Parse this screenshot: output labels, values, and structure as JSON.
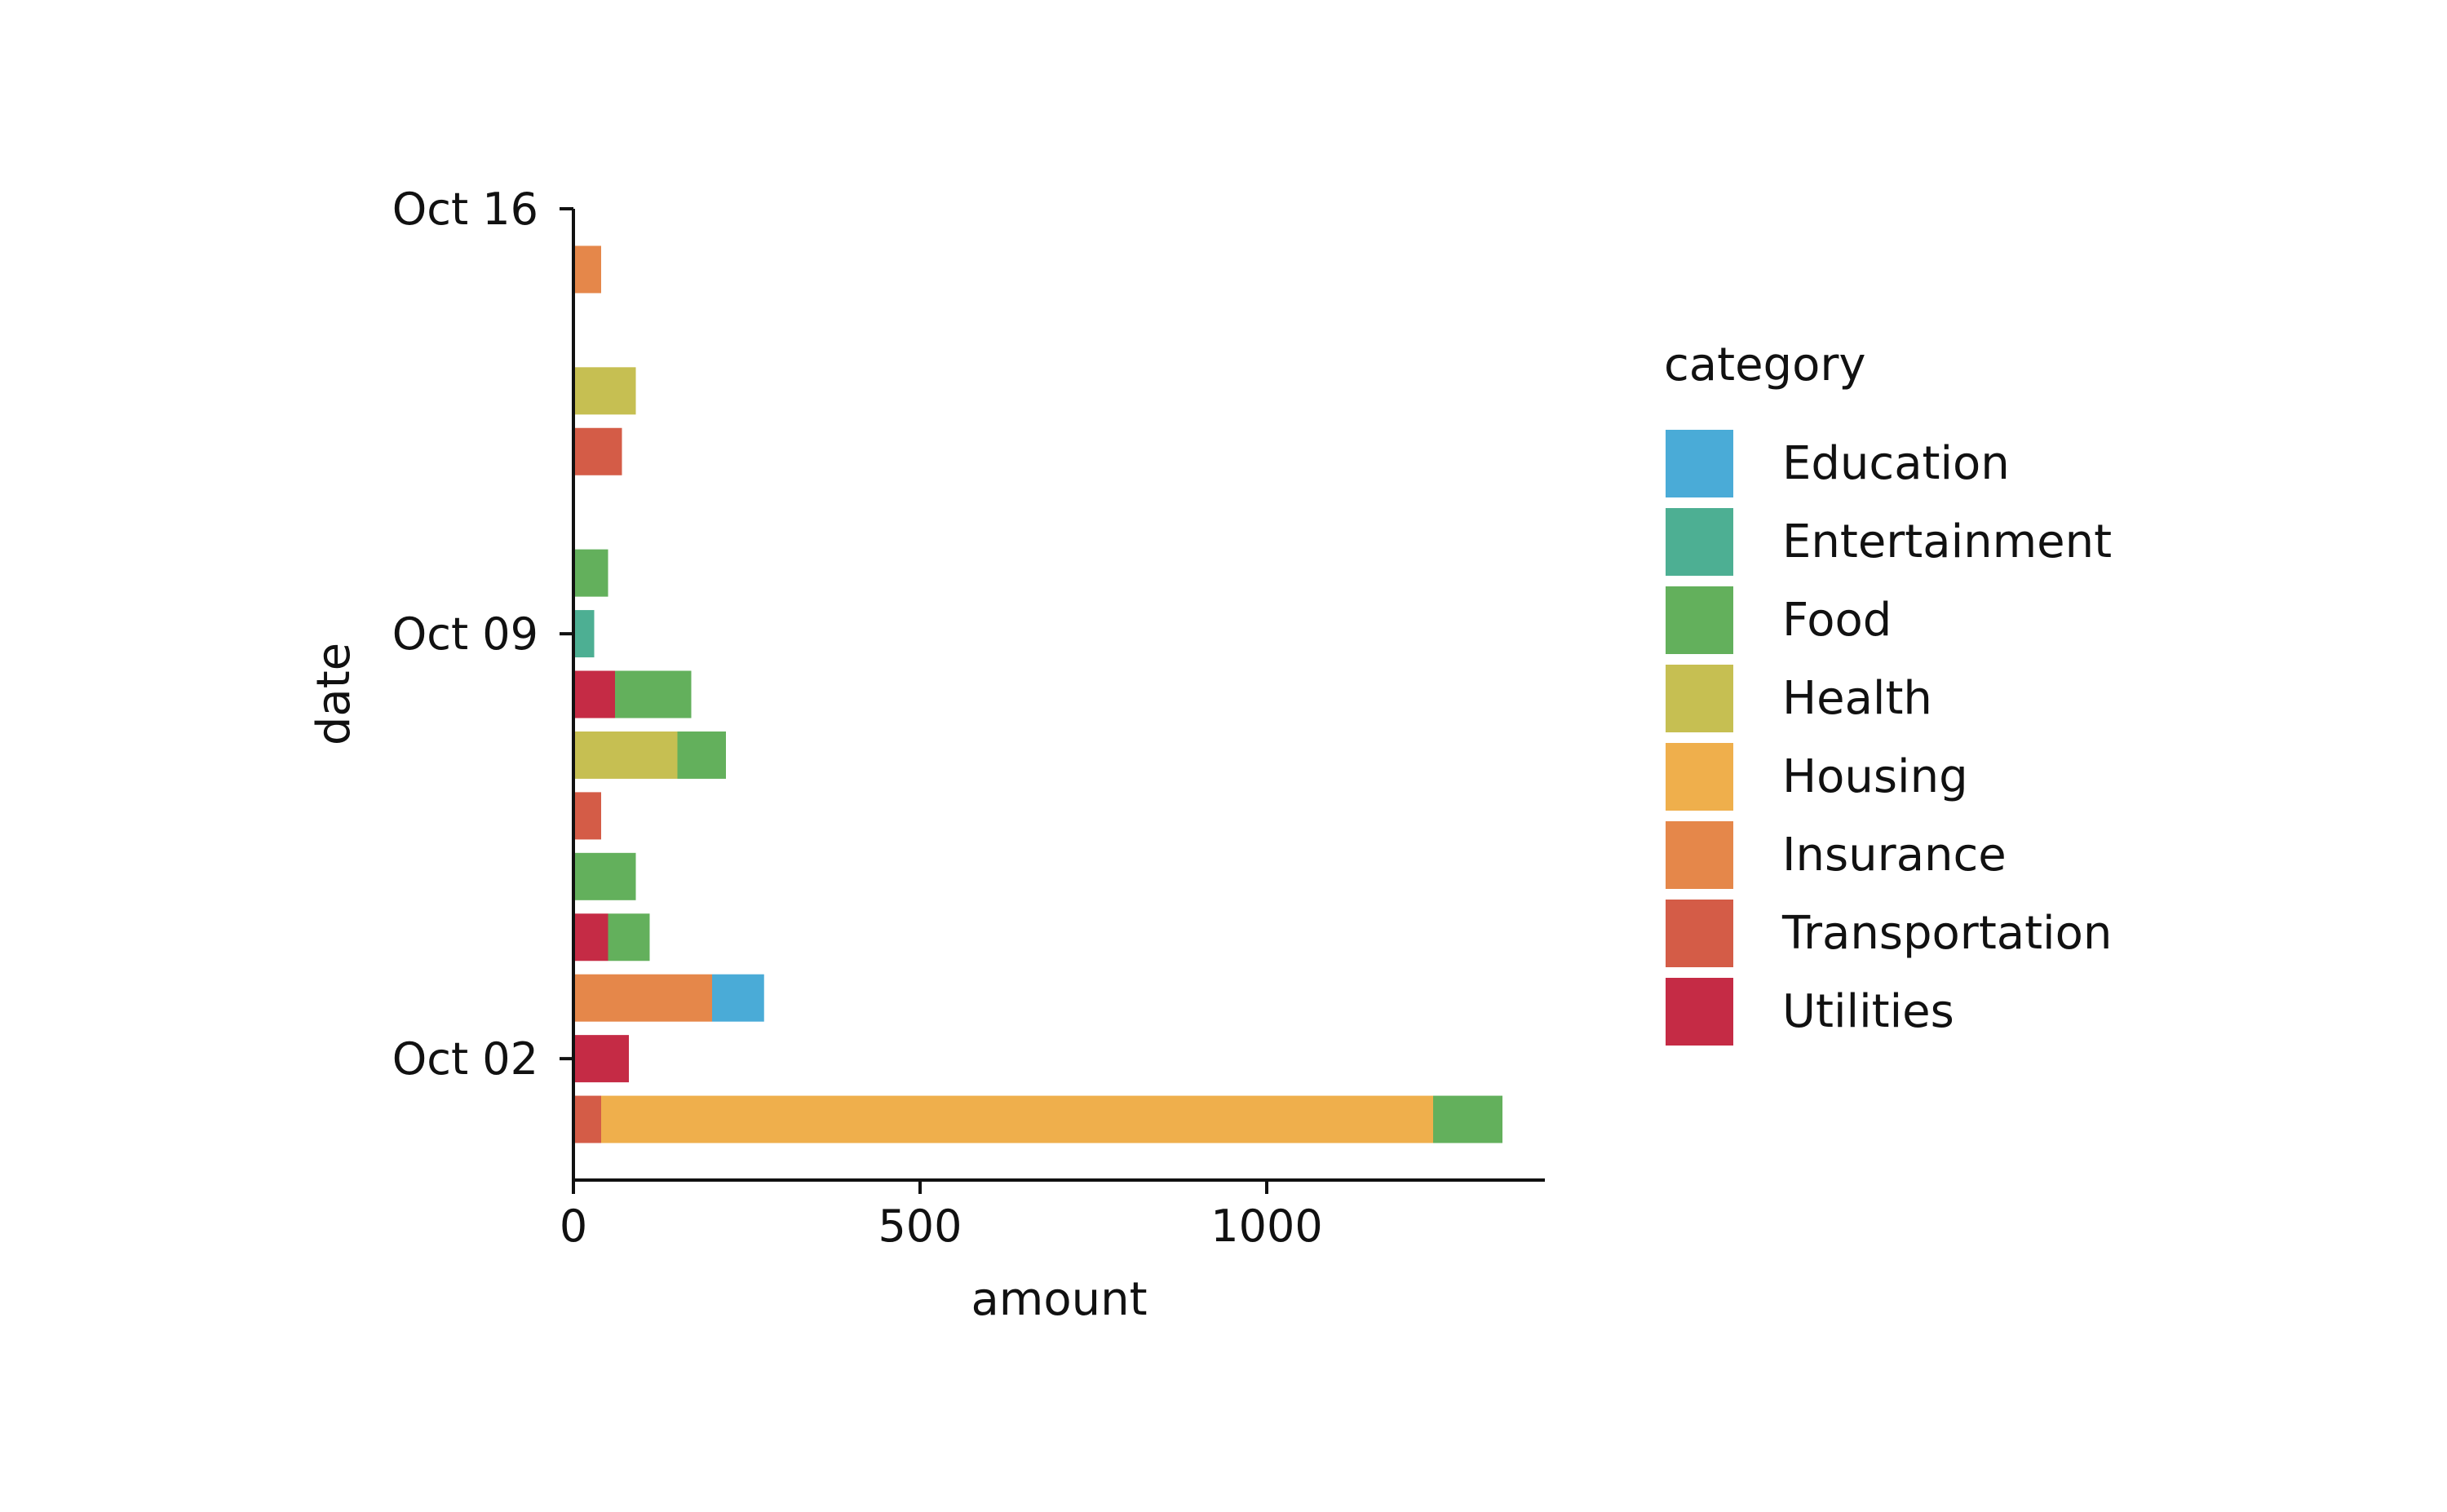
{
  "chart_data": {
    "type": "bar",
    "orientation": "horizontal",
    "stacked": true,
    "xlabel": "amount",
    "ylabel": "date",
    "xlim": [
      0,
      1400
    ],
    "x_ticks": [
      {
        "value": 0,
        "label": "0"
      },
      {
        "value": 500,
        "label": "500"
      },
      {
        "value": 1000,
        "label": "1000"
      }
    ],
    "ylim": [
      "2023-09-30",
      "2023-10-16"
    ],
    "y_ticks": [
      {
        "date": "2023-10-02",
        "label": "Oct 02"
      },
      {
        "date": "2023-10-09",
        "label": "Oct 09"
      },
      {
        "date": "2023-10-16",
        "label": "Oct 16"
      }
    ],
    "legend": {
      "title": "category",
      "position": "right"
    },
    "grid": false,
    "categories": [
      {
        "name": "Education",
        "color": "#4aabd7"
      },
      {
        "name": "Entertainment",
        "color": "#4daf93"
      },
      {
        "name": "Food",
        "color": "#63b05c"
      },
      {
        "name": "Health",
        "color": "#c6bf52"
      },
      {
        "name": "Housing",
        "color": "#efaf4c"
      },
      {
        "name": "Insurance",
        "color": "#e5874a"
      },
      {
        "name": "Transportation",
        "color": "#d45c47"
      },
      {
        "name": "Utilities",
        "color": "#c52b45"
      }
    ],
    "bars": [
      {
        "date": "2023-10-01",
        "segments": [
          {
            "category": "Transportation",
            "value": 40
          },
          {
            "category": "Housing",
            "value": 1200
          },
          {
            "category": "Food",
            "value": 100
          }
        ]
      },
      {
        "date": "2023-10-02",
        "segments": [
          {
            "category": "Utilities",
            "value": 80
          }
        ]
      },
      {
        "date": "2023-10-03",
        "segments": [
          {
            "category": "Insurance",
            "value": 200
          },
          {
            "category": "Education",
            "value": 75
          }
        ]
      },
      {
        "date": "2023-10-04",
        "segments": [
          {
            "category": "Utilities",
            "value": 50
          },
          {
            "category": "Food",
            "value": 60
          }
        ]
      },
      {
        "date": "2023-10-05",
        "segments": [
          {
            "category": "Food",
            "value": 90
          }
        ]
      },
      {
        "date": "2023-10-06",
        "segments": [
          {
            "category": "Transportation",
            "value": 40
          }
        ]
      },
      {
        "date": "2023-10-07",
        "segments": [
          {
            "category": "Health",
            "value": 150
          },
          {
            "category": "Food",
            "value": 70
          }
        ]
      },
      {
        "date": "2023-10-08",
        "segments": [
          {
            "category": "Utilities",
            "value": 60
          },
          {
            "category": "Food",
            "value": 110
          }
        ]
      },
      {
        "date": "2023-10-09",
        "segments": [
          {
            "category": "Entertainment",
            "value": 30
          }
        ]
      },
      {
        "date": "2023-10-10",
        "segments": [
          {
            "category": "Food",
            "value": 50
          }
        ]
      },
      {
        "date": "2023-10-12",
        "segments": [
          {
            "category": "Transportation",
            "value": 70
          }
        ]
      },
      {
        "date": "2023-10-13",
        "segments": [
          {
            "category": "Health",
            "value": 90
          }
        ]
      },
      {
        "date": "2023-10-15",
        "segments": [
          {
            "category": "Insurance",
            "value": 40
          }
        ]
      }
    ]
  }
}
